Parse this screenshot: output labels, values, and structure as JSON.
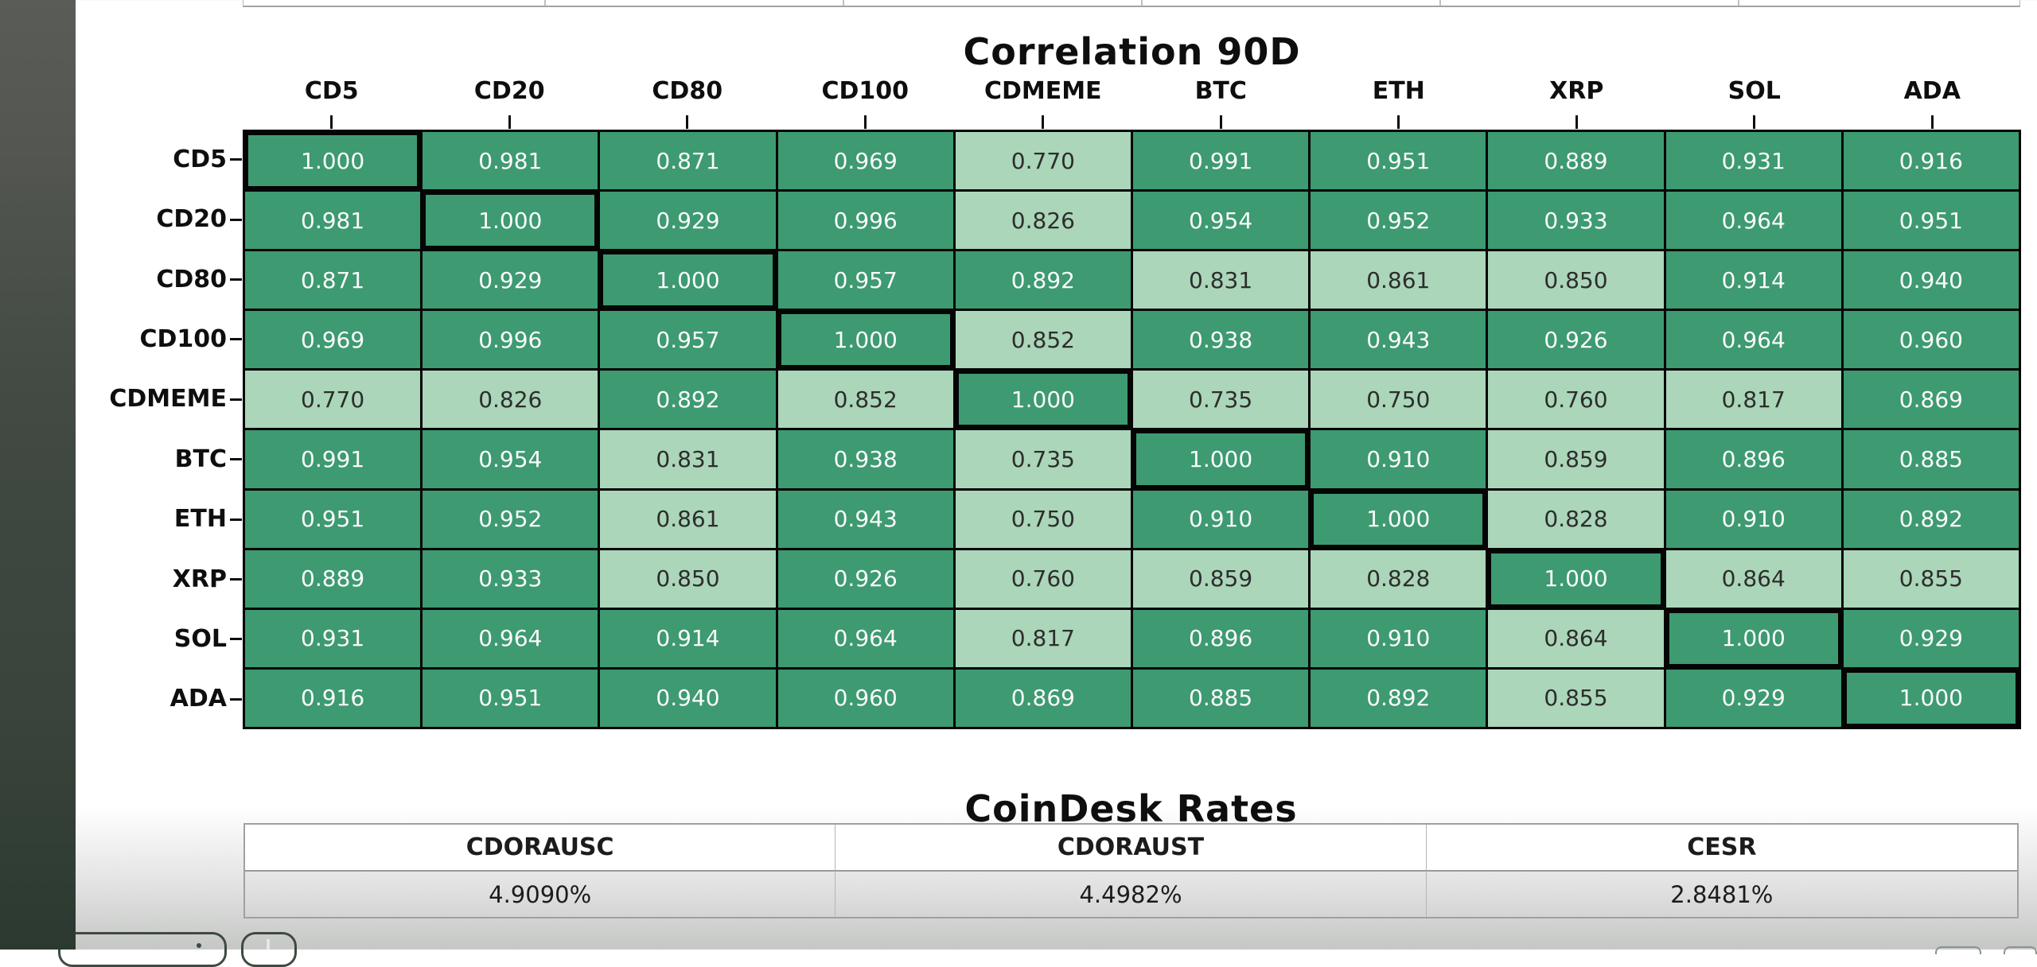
{
  "chart_data": [
    {
      "type": "heatmap",
      "title": "Correlation 90D",
      "x_labels": [
        "CD5",
        "CD20",
        "CD80",
        "CD100",
        "CDMEME",
        "BTC",
        "ETH",
        "XRP",
        "SOL",
        "ADA"
      ],
      "y_labels": [
        "CD5",
        "CD20",
        "CD80",
        "CD100",
        "CDMEME",
        "BTC",
        "ETH",
        "XRP",
        "SOL",
        "ADA"
      ],
      "values": [
        [
          1.0,
          0.981,
          0.871,
          0.969,
          0.77,
          0.991,
          0.951,
          0.889,
          0.931,
          0.916
        ],
        [
          0.981,
          1.0,
          0.929,
          0.996,
          0.826,
          0.954,
          0.952,
          0.933,
          0.964,
          0.951
        ],
        [
          0.871,
          0.929,
          1.0,
          0.957,
          0.892,
          0.831,
          0.861,
          0.85,
          0.914,
          0.94
        ],
        [
          0.969,
          0.996,
          0.957,
          1.0,
          0.852,
          0.938,
          0.943,
          0.926,
          0.964,
          0.96
        ],
        [
          0.77,
          0.826,
          0.892,
          0.852,
          1.0,
          0.735,
          0.75,
          0.76,
          0.817,
          0.869
        ],
        [
          0.991,
          0.954,
          0.831,
          0.938,
          0.735,
          1.0,
          0.91,
          0.859,
          0.896,
          0.885
        ],
        [
          0.951,
          0.952,
          0.861,
          0.943,
          0.75,
          0.91,
          1.0,
          0.828,
          0.91,
          0.892
        ],
        [
          0.889,
          0.933,
          0.85,
          0.926,
          0.76,
          0.859,
          0.828,
          1.0,
          0.864,
          0.855
        ],
        [
          0.931,
          0.964,
          0.914,
          0.964,
          0.817,
          0.896,
          0.91,
          0.864,
          1.0,
          0.929
        ],
        [
          0.916,
          0.951,
          0.94,
          0.96,
          0.869,
          0.885,
          0.892,
          0.855,
          0.929,
          1.0
        ]
      ],
      "value_range": [
        0.735,
        1.0
      ],
      "color_threshold": 0.8675,
      "colors": {
        "high_bin": "#3d9a71",
        "low_bin": "#abd6b9",
        "text_on_high": "#fafafa",
        "text_on_low": "#2d2d2d",
        "grid_line": "#050505"
      },
      "diagonal_highlight": "thick black border on self-correlation cells",
      "value_format": "0.000"
    },
    {
      "type": "table",
      "title": "CoinDesk Rates",
      "columns": [
        "CDORAUSC",
        "CDORAUST",
        "CESR"
      ],
      "rows": [
        [
          "4.9090%",
          "4.4982%",
          "2.8481%"
        ]
      ]
    }
  ],
  "toolbar": {
    "plus_button_label": "+"
  }
}
